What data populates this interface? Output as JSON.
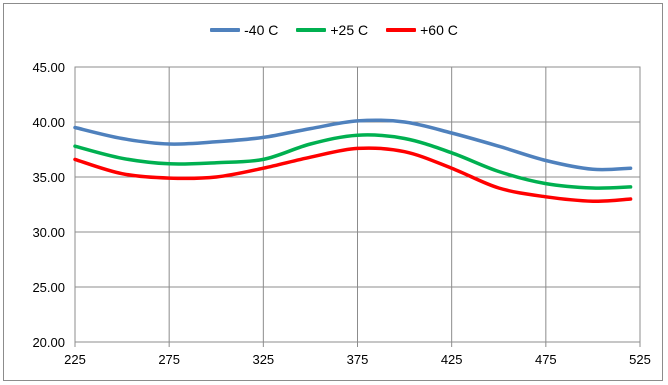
{
  "chart_data": {
    "type": "line",
    "title": "",
    "xlabel": "",
    "ylabel": "",
    "xlim": [
      225,
      525
    ],
    "ylim": [
      20,
      45
    ],
    "x_ticks": [
      "225",
      "275",
      "325",
      "375",
      "425",
      "475",
      "525"
    ],
    "x_tick_values": [
      225,
      275,
      325,
      375,
      425,
      475,
      525
    ],
    "y_ticks": [
      "20.00",
      "25.00",
      "30.00",
      "35.00",
      "40.00",
      "45.00"
    ],
    "y_tick_values": [
      20,
      25,
      30,
      35,
      40,
      45
    ],
    "grid": "on",
    "legend_position": "top",
    "x": [
      225,
      250,
      275,
      300,
      325,
      350,
      375,
      400,
      425,
      450,
      475,
      500,
      520
    ],
    "series": [
      {
        "name": "-40 C",
        "color": "#4f81bd",
        "values": [
          39.5,
          38.5,
          38.0,
          38.2,
          38.6,
          39.4,
          40.1,
          40.0,
          39.0,
          37.8,
          36.5,
          35.7,
          35.8
        ]
      },
      {
        "name": "+25 C",
        "color": "#00b050",
        "values": [
          37.8,
          36.7,
          36.2,
          36.3,
          36.6,
          38.0,
          38.8,
          38.5,
          37.2,
          35.5,
          34.4,
          34.0,
          34.1
        ]
      },
      {
        "name": "+60 C",
        "color": "#ff0000",
        "values": [
          36.6,
          35.3,
          34.9,
          35.0,
          35.8,
          36.8,
          37.6,
          37.3,
          35.8,
          34.0,
          33.2,
          32.8,
          33.0
        ]
      }
    ]
  }
}
